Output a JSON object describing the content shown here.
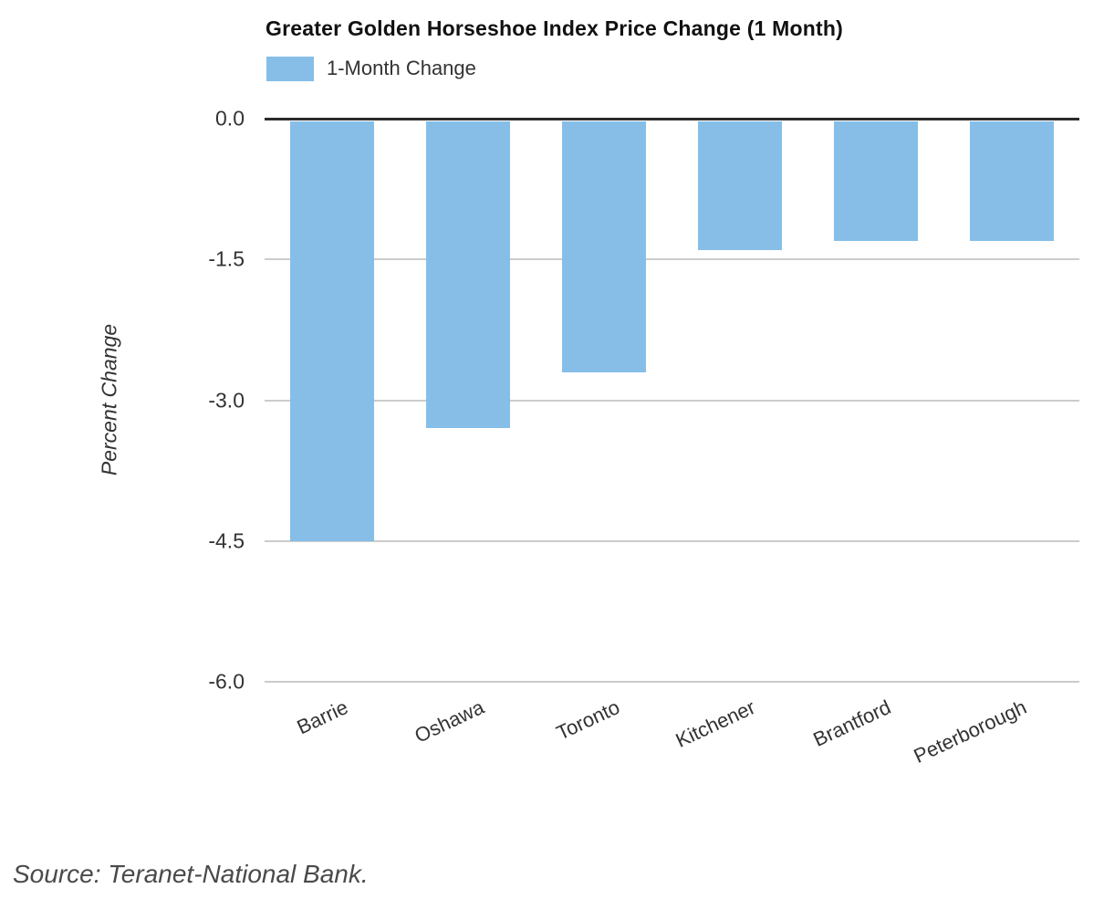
{
  "title": "Greater Golden Horseshoe Index Price Change (1 Month)",
  "legend": {
    "label": "1-Month Change",
    "swatch_color": "#86BEE8"
  },
  "source_note": "Source: Teranet-National Bank.",
  "chart_data": {
    "type": "bar",
    "title": "Greater Golden Horseshoe Index Price Change (1 Month)",
    "series": [
      {
        "name": "1-Month Change",
        "values": [
          -4.5,
          -3.3,
          -2.7,
          -1.4,
          -1.3,
          -1.3
        ]
      }
    ],
    "categories": [
      "Barrie",
      "Oshawa",
      "Toronto",
      "Kitchener",
      "Brantford",
      "Peterborough"
    ],
    "xlabel": "",
    "ylabel": "Percent Change",
    "ylim": [
      -6.0,
      0.0
    ],
    "yticks": [
      0.0,
      -1.5,
      -3.0,
      -4.5,
      -6.0
    ],
    "ytick_labels": [
      "0.0",
      "-1.5",
      "-3.0",
      "-4.5",
      "-6.0"
    ],
    "grid": true,
    "legend_position": "top-left",
    "bar_color": "#86BEE8",
    "axis_line_color": "#2b2b2b",
    "grid_color": "#cccccc",
    "text_color": "#333333",
    "category_label_rotation_deg": -25
  }
}
